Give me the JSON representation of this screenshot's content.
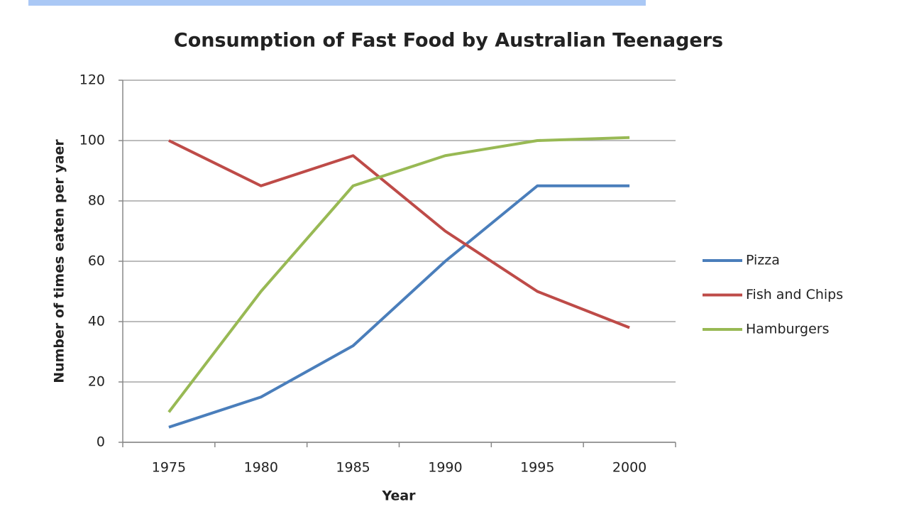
{
  "chart_data": {
    "type": "line",
    "title": "Consumption of Fast Food by Australian Teenagers",
    "x_label": "Year",
    "y_label": "Number of times eaten per yaer",
    "categories": [
      "1975",
      "1980",
      "1985",
      "1990",
      "1995",
      "2000"
    ],
    "series": [
      {
        "name": "Pizza",
        "color": "#4a7ebb",
        "values": [
          5,
          15,
          32,
          60,
          85,
          85
        ]
      },
      {
        "name": "Fish and Chips",
        "color": "#be4b48",
        "values": [
          100,
          85,
          95,
          70,
          50,
          38
        ]
      },
      {
        "name": "Hamburgers",
        "color": "#98b954",
        "values": [
          10,
          50,
          85,
          95,
          100,
          101
        ]
      }
    ],
    "ylim": [
      0,
      120
    ],
    "yticks": [
      0,
      20,
      40,
      60,
      80,
      100,
      120
    ],
    "grid": true,
    "legend": "right"
  }
}
